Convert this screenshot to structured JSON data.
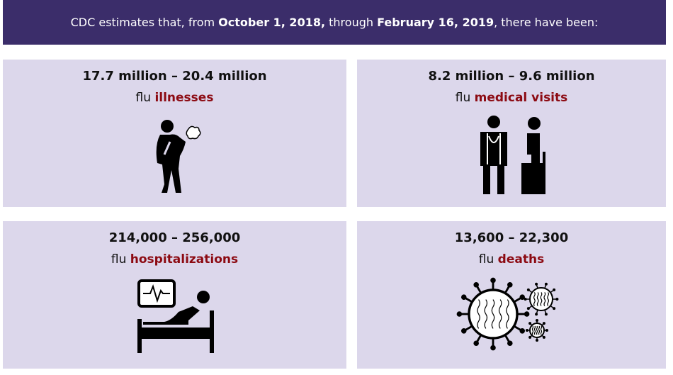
{
  "header": {
    "segments": [
      "CDC estimates that, from ",
      "October 1, 2018,",
      " through ",
      "February 16, 2019",
      ", there have been:"
    ]
  },
  "cards": [
    {
      "range": "17.7 million – 20.4 million",
      "prefix": "flu",
      "highlight": "illnesses"
    },
    {
      "range": "8.2 million – 9.6 million",
      "prefix": "flu",
      "highlight": "medical visits"
    },
    {
      "range": "214,000 – 256,000",
      "prefix": "flu",
      "highlight": "hospitalizations"
    },
    {
      "range": "13,600 – 22,300",
      "prefix": "flu",
      "highlight": "deaths"
    }
  ]
}
